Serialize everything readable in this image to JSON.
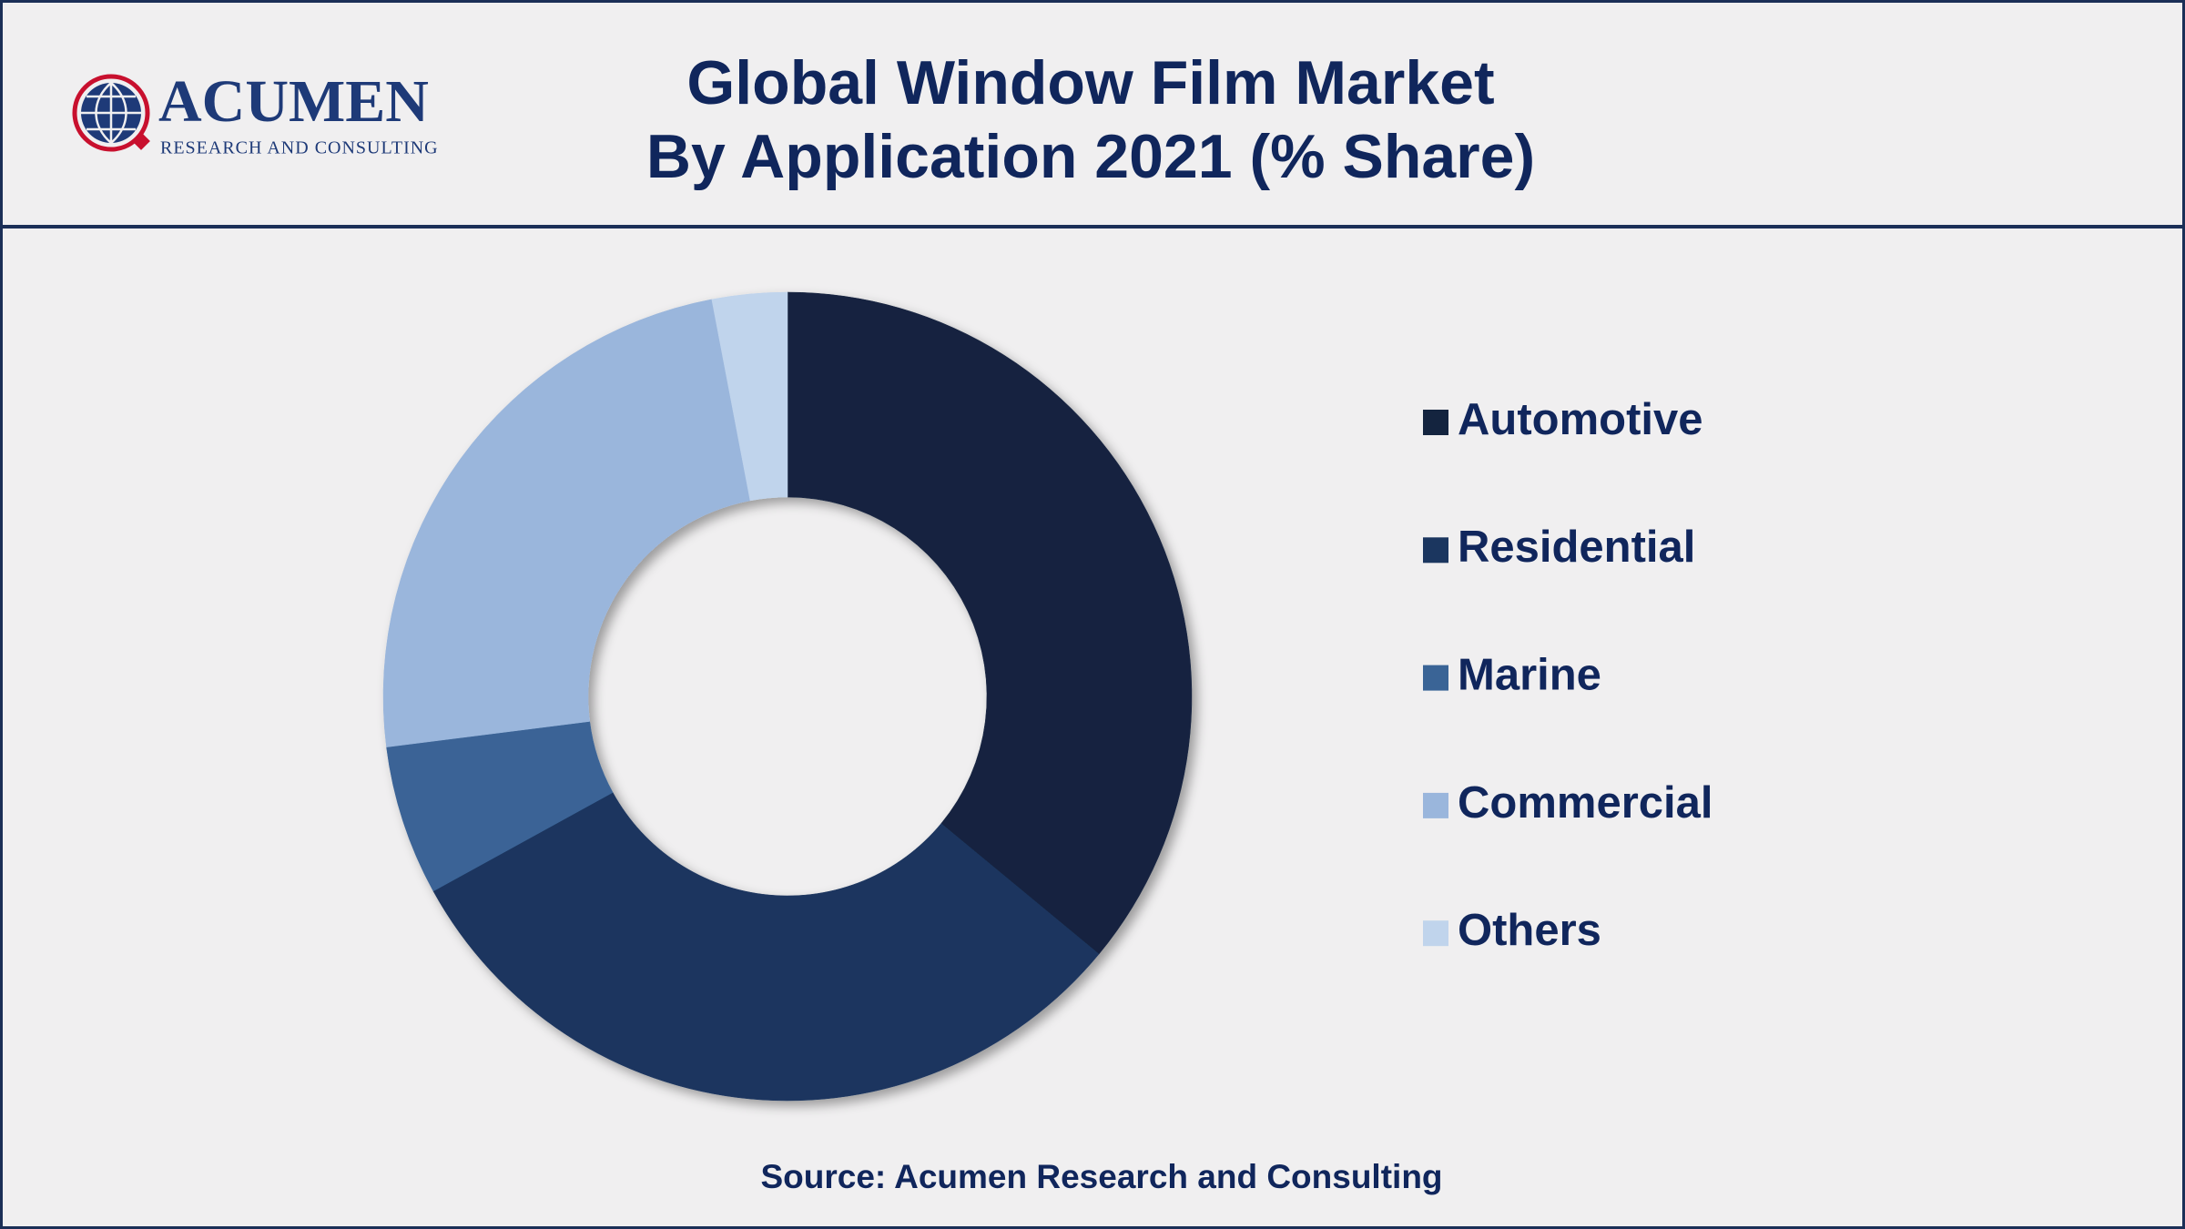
{
  "logo": {
    "name": "ACUMEN",
    "tagline": "RESEARCH AND CONSULTING"
  },
  "chart_data": {
    "type": "donut",
    "title": "Global Window Film Market",
    "subtitle": "By Application 2021 (% Share)",
    "categories": [
      "Automotive",
      "Residential",
      "Marine",
      "Commercial",
      "Others"
    ],
    "values": [
      36,
      31,
      6,
      24,
      3
    ],
    "colors": [
      "#14243f",
      "#1b365f",
      "#3a6496",
      "#9ab6dc",
      "#c0d4ec"
    ],
    "legend": "right",
    "source": "Source: Acumen Research and Consulting"
  }
}
